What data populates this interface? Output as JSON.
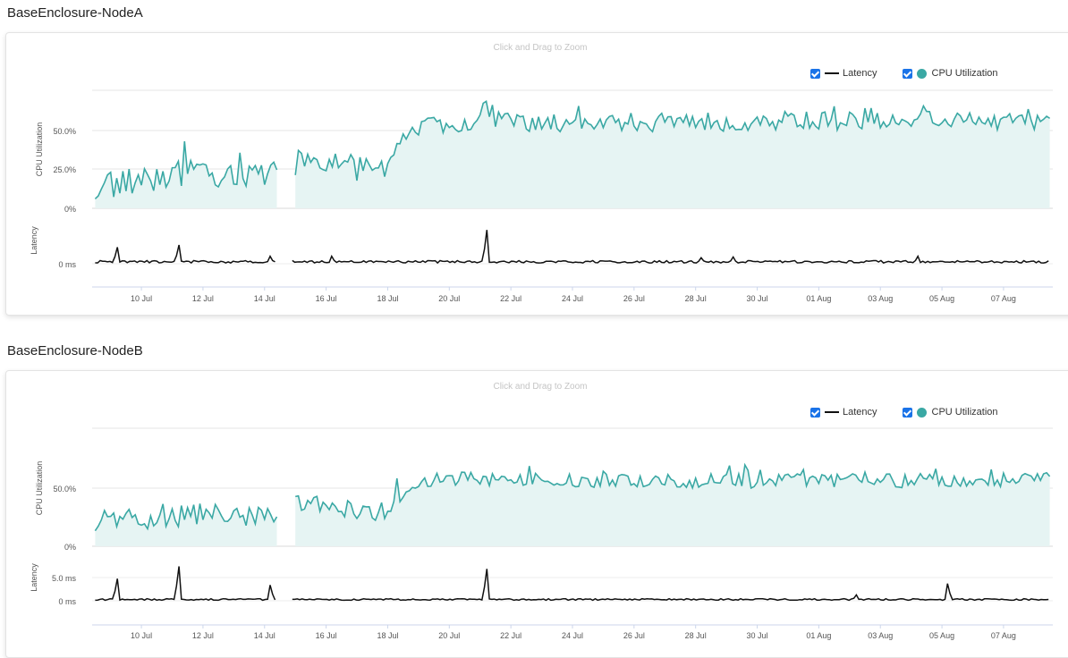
{
  "zoom_hint": "Click and Drag to Zoom",
  "legend": {
    "latency": "Latency",
    "cpu": "CPU Utilization"
  },
  "colors": {
    "cpu_line": "#3aa8a4",
    "cpu_fill": "#e6f4f3",
    "latency_line": "#111111",
    "checkbox": "#1a73e8"
  },
  "panels": [
    {
      "title": "BaseEnclosure-NodeA"
    },
    {
      "title": "BaseEnclosure-NodeB"
    }
  ],
  "chart_data": [
    {
      "type": "area",
      "title": "BaseEnclosure-NodeA",
      "x_ticks": [
        "10 Jul",
        "12 Jul",
        "14 Jul",
        "16 Jul",
        "18 Jul",
        "20 Jul",
        "22 Jul",
        "24 Jul",
        "26 Jul",
        "28 Jul",
        "30 Jul",
        "01 Aug",
        "03 Aug",
        "05 Aug",
        "07 Aug"
      ],
      "x_range": [
        "2023-07-09",
        "2023-08-08"
      ],
      "gap": [
        "2023-07-14",
        "2023-07-15"
      ],
      "cpu": {
        "ylabel": "CPU Utilization",
        "y_ticks": [
          "0%",
          "25.0%",
          "50.0%"
        ],
        "ylim": [
          0,
          75
        ],
        "series_points": [
          [
            "2023-07-09",
            15
          ],
          [
            "2023-07-10",
            18
          ],
          [
            "2023-07-11",
            22
          ],
          [
            "2023-07-12",
            24
          ],
          [
            "2023-07-13",
            21
          ],
          [
            "2023-07-14",
            20
          ],
          [
            "2023-07-15",
            28
          ],
          [
            "2023-07-16",
            27
          ],
          [
            "2023-07-17",
            26
          ],
          [
            "2023-07-18",
            25
          ],
          [
            "2023-07-19",
            52
          ],
          [
            "2023-07-20",
            54
          ],
          [
            "2023-07-21",
            56
          ],
          [
            "2023-07-22",
            55
          ],
          [
            "2023-07-23",
            54
          ],
          [
            "2023-07-24",
            55
          ],
          [
            "2023-07-25",
            55
          ],
          [
            "2023-07-26",
            54
          ],
          [
            "2023-07-27",
            55
          ],
          [
            "2023-07-28",
            55
          ],
          [
            "2023-07-29",
            55
          ],
          [
            "2023-07-30",
            55
          ],
          [
            "2023-07-31",
            56
          ],
          [
            "2023-08-01",
            55
          ],
          [
            "2023-08-02",
            56
          ],
          [
            "2023-08-03",
            56
          ],
          [
            "2023-08-04",
            56
          ],
          [
            "2023-08-05",
            56
          ],
          [
            "2023-08-06",
            55
          ],
          [
            "2023-08-07",
            55
          ],
          [
            "2023-08-08",
            56
          ]
        ]
      },
      "latency": {
        "ylabel": "Latency",
        "y_ticks": [
          "0 ms"
        ],
        "ylim": [
          0,
          5
        ],
        "spikes": [
          [
            "2023-07-09",
            2.2
          ],
          [
            "2023-07-11",
            2.5
          ],
          [
            "2023-07-14",
            1.0
          ],
          [
            "2023-07-16",
            1.0
          ],
          [
            "2023-07-21",
            4.5
          ],
          [
            "2023-07-28",
            0.8
          ],
          [
            "2023-07-29",
            0.9
          ],
          [
            "2023-08-04",
            1.0
          ]
        ]
      }
    },
    {
      "type": "area",
      "title": "BaseEnclosure-NodeB",
      "x_ticks": [
        "10 Jul",
        "12 Jul",
        "14 Jul",
        "16 Jul",
        "18 Jul",
        "20 Jul",
        "22 Jul",
        "24 Jul",
        "26 Jul",
        "28 Jul",
        "30 Jul",
        "01 Aug",
        "03 Aug",
        "05 Aug",
        "07 Aug"
      ],
      "x_range": [
        "2023-07-09",
        "2023-08-08"
      ],
      "gap": [
        "2023-07-14",
        "2023-07-15"
      ],
      "cpu": {
        "ylabel": "CPU Utilization",
        "y_ticks": [
          "0%",
          "50.0%"
        ],
        "ylim": [
          0,
          100
        ],
        "series_points": [
          [
            "2023-07-09",
            22
          ],
          [
            "2023-07-10",
            20
          ],
          [
            "2023-07-11",
            25
          ],
          [
            "2023-07-12",
            28
          ],
          [
            "2023-07-13",
            24
          ],
          [
            "2023-07-14",
            25
          ],
          [
            "2023-07-15",
            35
          ],
          [
            "2023-07-16",
            34
          ],
          [
            "2023-07-17",
            30
          ],
          [
            "2023-07-18",
            30
          ],
          [
            "2023-07-19",
            55
          ],
          [
            "2023-07-20",
            58
          ],
          [
            "2023-07-21",
            56
          ],
          [
            "2023-07-22",
            55
          ],
          [
            "2023-07-23",
            56
          ],
          [
            "2023-07-24",
            55
          ],
          [
            "2023-07-25",
            55
          ],
          [
            "2023-07-26",
            55
          ],
          [
            "2023-07-27",
            56
          ],
          [
            "2023-07-28",
            55
          ],
          [
            "2023-07-29",
            56
          ],
          [
            "2023-07-30",
            55
          ],
          [
            "2023-07-31",
            56
          ],
          [
            "2023-08-01",
            55
          ],
          [
            "2023-08-02",
            56
          ],
          [
            "2023-08-03",
            55
          ],
          [
            "2023-08-04",
            56
          ],
          [
            "2023-08-05",
            55
          ],
          [
            "2023-08-06",
            56
          ],
          [
            "2023-08-07",
            56
          ],
          [
            "2023-08-08",
            58
          ]
        ]
      },
      "latency": {
        "ylabel": "Latency",
        "y_ticks": [
          "0 ms",
          "5.0 ms"
        ],
        "ylim": [
          0,
          7.5
        ],
        "spikes": [
          [
            "2023-07-09",
            4.5
          ],
          [
            "2023-07-11",
            7.0
          ],
          [
            "2023-07-14",
            3.0
          ],
          [
            "2023-07-14",
            3.2
          ],
          [
            "2023-07-21",
            6.5
          ],
          [
            "2023-08-02",
            1.2
          ],
          [
            "2023-08-05",
            3.5
          ]
        ]
      }
    }
  ]
}
